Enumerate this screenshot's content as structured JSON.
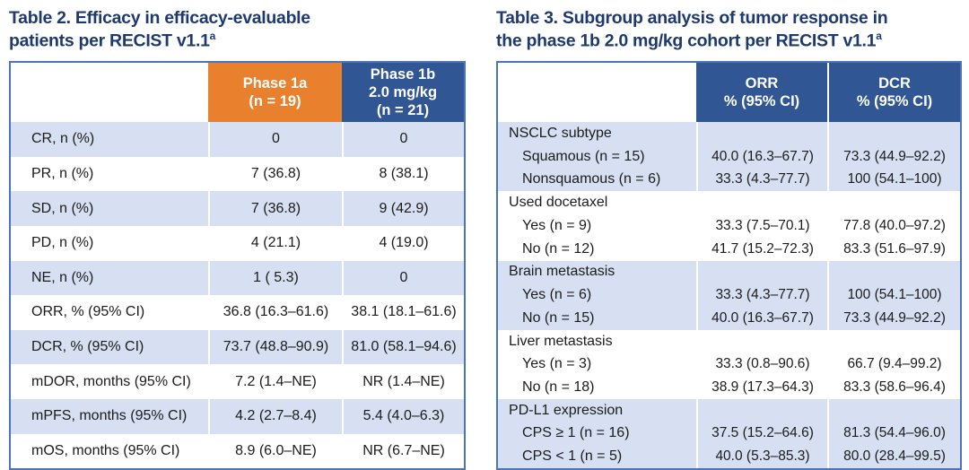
{
  "colors": {
    "title_navy": "#1E3A6D",
    "header_orange": "#E8802E",
    "header_blue": "#315694",
    "row_alt_blue": "#D7E0F2",
    "table_border_blue": "#4C74BC"
  },
  "table2": {
    "title": "Table 2. Efficacy in efficacy-evaluable\npatients per RECIST v1.1",
    "title_superscript": "a",
    "col_headers": [
      "Phase 1a\n(n = 19)",
      "Phase 1b\n2.0 mg/kg\n(n = 21)"
    ],
    "rows": [
      {
        "label": "CR, n (%)",
        "phase1a": "0",
        "phase1b": "0"
      },
      {
        "label": "PR, n (%)",
        "phase1a": "7 (36.8)",
        "phase1b": "8 (38.1)"
      },
      {
        "label": "SD, n (%)",
        "phase1a": "7 (36.8)",
        "phase1b": "9 (42.9)"
      },
      {
        "label": "PD, n (%)",
        "phase1a": "4 (21.1)",
        "phase1b": "4 (19.0)"
      },
      {
        "label": "NE, n (%)",
        "phase1a": "1 ( 5.3)",
        "phase1b": "0"
      },
      {
        "label": "ORR, % (95% CI)",
        "phase1a": "36.8 (16.3–61.6)",
        "phase1b": "38.1 (18.1–61.6)"
      },
      {
        "label": "DCR, % (95% CI)",
        "phase1a": "73.7 (48.8–90.9)",
        "phase1b": "81.0 (58.1–94.6)"
      },
      {
        "label": "mDOR, months (95% CI)",
        "phase1a": "7.2 (1.4–NE)",
        "phase1b": "NR (1.4–NE)"
      },
      {
        "label": "mPFS, months (95% CI)",
        "phase1a": "4.2 (2.7–8.4)",
        "phase1b": "5.4 (4.0–6.3)"
      },
      {
        "label": "mOS, months (95% CI)",
        "phase1a": "8.9 (6.0–NE)",
        "phase1b": "NR (6.7–NE)"
      }
    ]
  },
  "table3": {
    "title": "Table 3. Subgroup analysis of tumor response in\nthe phase 1b 2.0 mg/kg cohort per RECIST v1.1",
    "title_superscript": "a",
    "col_headers": [
      "ORR\n% (95% CI)",
      "DCR\n% (95% CI)"
    ],
    "groups": [
      {
        "header": "NSCLC subtype",
        "rows": [
          {
            "label": "Squamous (n = 15)",
            "orr": "40.0 (16.3–67.7)",
            "dcr": "73.3 (44.9–92.2)"
          },
          {
            "label": "Nonsquamous (n = 6)",
            "orr": "33.3 (4.3–77.7)",
            "dcr": "100 (54.1–100)"
          }
        ]
      },
      {
        "header": "Used docetaxel",
        "rows": [
          {
            "label": "Yes (n = 9)",
            "orr": "33.3 (7.5–70.1)",
            "dcr": "77.8 (40.0–97.2)"
          },
          {
            "label": "No (n = 12)",
            "orr": "41.7 (15.2–72.3)",
            "dcr": "83.3 (51.6–97.9)"
          }
        ]
      },
      {
        "header": "Brain metastasis",
        "rows": [
          {
            "label": "Yes (n = 6)",
            "orr": "33.3 (4.3–77.7)",
            "dcr": "100 (54.1–100)"
          },
          {
            "label": "No (n = 15)",
            "orr": "40.0 (16.3–67.7)",
            "dcr": "73.3 (44.9–92.2)"
          }
        ]
      },
      {
        "header": "Liver metastasis",
        "rows": [
          {
            "label": "Yes (n = 3)",
            "orr": "33.3 (0.8–90.6)",
            "dcr": "66.7 (9.4–99.2)"
          },
          {
            "label": "No (n = 18)",
            "orr": "38.9 (17.3–64.3)",
            "dcr": "83.3 (58.6–96.4)"
          }
        ]
      },
      {
        "header": "PD-L1 expression",
        "rows": [
          {
            "label": "CPS ≥ 1 (n = 16)",
            "orr": "37.5 (15.2–64.6)",
            "dcr": "81.3 (54.4–96.0)"
          },
          {
            "label": "CPS < 1 (n = 5)",
            "orr": "40.0 (5.3–85.3)",
            "dcr": "80.0 (28.4–99.5)"
          }
        ]
      }
    ]
  }
}
